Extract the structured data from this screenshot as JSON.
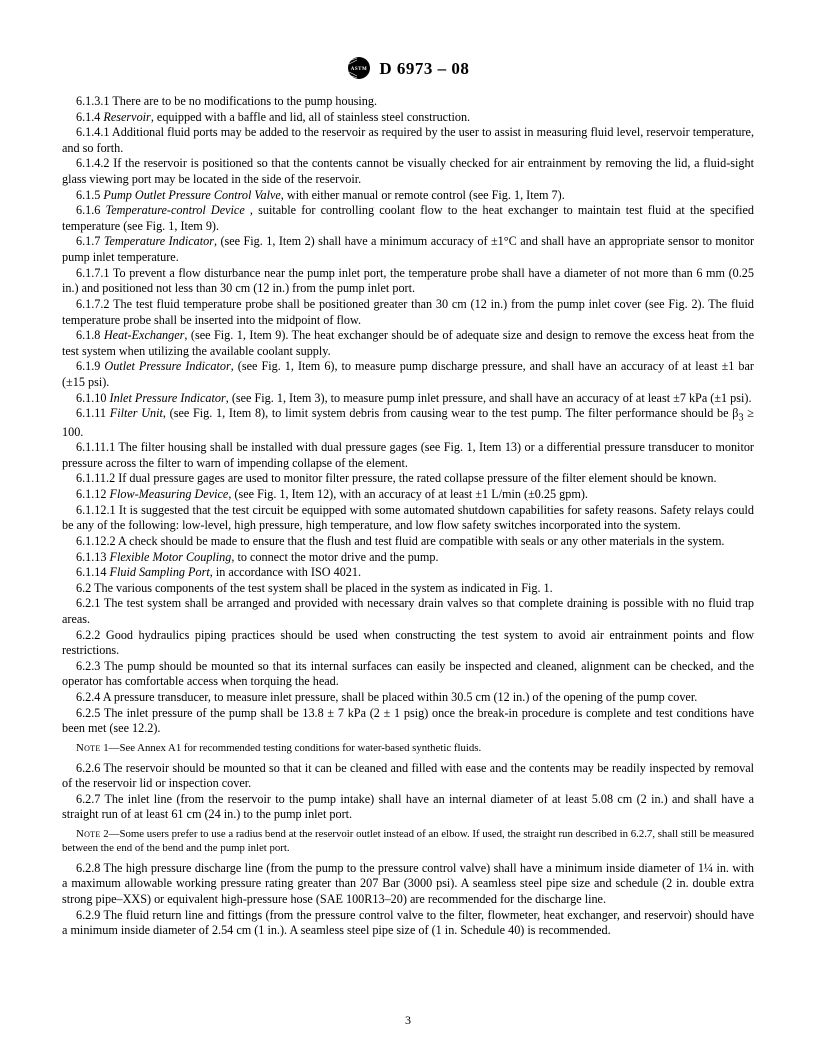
{
  "header": {
    "designation": "D 6973 – 08"
  },
  "paragraphs": [
    {
      "cls": "",
      "html": "6.1.3.1 There are to be no modifications to the pump housing."
    },
    {
      "cls": "",
      "html": "6.1.4 <span class=\"it\">Reservoir</span>, equipped with a baffle and lid, all of stainless steel construction."
    },
    {
      "cls": "",
      "html": "6.1.4.1 Additional fluid ports may be added to the reservoir as required by the user to assist in measuring fluid level, reservoir temperature, and so forth."
    },
    {
      "cls": "",
      "html": "6.1.4.2 If the reservoir is positioned so that the contents cannot be visually checked for air entrainment by removing the lid, a fluid-sight glass viewing port may be located in the side of the reservoir."
    },
    {
      "cls": "",
      "html": "6.1.5 <span class=\"it\">Pump Outlet Pressure Control Valve</span>, with either manual or remote control (see Fig. 1, Item 7)."
    },
    {
      "cls": "",
      "html": "6.1.6 <span class=\"it\">Temperature-control Device</span> , suitable for controlling coolant flow to the heat exchanger to maintain test fluid at the specified temperature (see Fig. 1, Item 9)."
    },
    {
      "cls": "",
      "html": "6.1.7 <span class=\"it\">Temperature Indicator</span>, (see Fig. 1, Item 2) shall have a minimum accuracy of ±1°C and shall have an appropriate sensor to monitor pump inlet temperature."
    },
    {
      "cls": "",
      "html": "6.1.7.1 To prevent a flow disturbance near the pump inlet port, the temperature probe shall have a diameter of not more than 6 mm (0.25 in.) and positioned not less than 30 cm (12 in.) from the pump inlet port."
    },
    {
      "cls": "",
      "html": "6.1.7.2 The test fluid temperature probe shall be positioned greater than 30 cm (12 in.) from the pump inlet cover (see Fig. 2). The fluid temperature probe shall be inserted into the midpoint of flow."
    },
    {
      "cls": "",
      "html": "6.1.8 <span class=\"it\">Heat-Exchanger</span>, (see Fig. 1, Item 9). The heat exchanger should be of adequate size and design to remove the excess heat from the test system when utilizing the available coolant supply."
    },
    {
      "cls": "",
      "html": "6.1.9 <span class=\"it\">Outlet Pressure Indicator</span>, (see Fig. 1, Item 6), to measure pump discharge pressure, and shall have an accuracy of at least ±1 bar (±15 psi)."
    },
    {
      "cls": "",
      "html": "6.1.10 <span class=\"it\">Inlet Pressure Indicator</span>, (see Fig. 1, Item 3), to measure pump inlet pressure, and shall have an accuracy of at least ±7 kPa (±1 psi)."
    },
    {
      "cls": "",
      "html": "6.1.11 <span class=\"it\">Filter Unit</span>, (see Fig. 1, Item 8), to limit system debris from causing wear to the test pump. The filter performance should be β<sub>3</sub> ≥ 100."
    },
    {
      "cls": "",
      "html": "6.1.11.1 The filter housing shall be installed with dual pressure gages (see Fig. 1, Item 13) or a differential pressure transducer to monitor pressure across the filter to warn of impending collapse of the element."
    },
    {
      "cls": "",
      "html": "6.1.11.2 If dual pressure gages are used to monitor filter pressure, the rated collapse pressure of the filter element should be known."
    },
    {
      "cls": "",
      "html": "6.1.12 <span class=\"it\">Flow-Measuring Device</span>, (see Fig. 1, Item 12), with an accuracy of at least ±1 L/min (±0.25 gpm)."
    },
    {
      "cls": "",
      "html": "6.1.12.1 It is suggested that the test circuit be equipped with some automated shutdown capabilities for safety reasons. Safety relays could be any of the following: low-level, high pressure, high temperature, and low flow safety switches incorporated into the system."
    },
    {
      "cls": "",
      "html": "6.1.12.2 A check should be made to ensure that the flush and test fluid are compatible with seals or any other materials in the system."
    },
    {
      "cls": "",
      "html": "6.1.13 <span class=\"it\">Flexible Motor Coupling</span>, to connect the motor drive and the pump."
    },
    {
      "cls": "",
      "html": "6.1.14 <span class=\"it\">Fluid Sampling Port</span>, in accordance with ISO 4021."
    },
    {
      "cls": "",
      "html": "6.2 The various components of the test system shall be placed in the system as indicated in Fig. 1."
    },
    {
      "cls": "",
      "html": "6.2.1 The test system shall be arranged and provided with necessary drain valves so that complete draining is possible with no fluid trap areas."
    },
    {
      "cls": "",
      "html": "6.2.2 Good hydraulics piping practices should be used when constructing the test system to avoid air entrainment points and flow restrictions."
    },
    {
      "cls": "",
      "html": "6.2.3 The pump should be mounted so that its internal surfaces can easily be inspected and cleaned, alignment can be checked, and the operator has comfortable access when torquing the head."
    },
    {
      "cls": "",
      "html": "6.2.4 A pressure transducer, to measure inlet pressure, shall be placed within 30.5 cm (12 in.) of the opening of the pump cover."
    },
    {
      "cls": "",
      "html": "6.2.5 The inlet pressure of the pump shall be 13.8 ± 7 kPa (2 ± 1 psig) once the break-in procedure is complete and test conditions have been met (see 12.2)."
    },
    {
      "cls": "note",
      "html": "<span class=\"sc\">Note</span> 1—See Annex A1 for recommended testing conditions for water-based synthetic fluids."
    },
    {
      "cls": "",
      "html": "6.2.6 The reservoir should be mounted so that it can be cleaned and filled with ease and the contents may be readily inspected by removal of the reservoir lid or inspection cover."
    },
    {
      "cls": "",
      "html": "6.2.7 The inlet line (from the reservoir to the pump intake) shall have an internal diameter of at least 5.08 cm (2 in.) and shall have a straight run of at least 61 cm (24 in.) to the pump inlet port."
    },
    {
      "cls": "note",
      "html": "<span class=\"sc\">Note</span> 2—Some users prefer to use a radius bend at the reservoir outlet instead of an elbow. If used, the straight run described in 6.2.7, shall still be measured between the end of the bend and the pump inlet port."
    },
    {
      "cls": "",
      "html": "6.2.8 The high pressure discharge line (from the pump to the pressure control valve) shall have a minimum inside diameter of 1¼ in. with a maximum allowable working pressure rating greater than 207 Bar (3000 psi). A seamless steel pipe size and schedule (2 in. double extra strong pipe–XXS) or equivalent high-pressure hose (SAE 100R13–20) are recommended for the discharge line."
    },
    {
      "cls": "",
      "html": "6.2.9 The fluid return line and fittings (from the pressure control valve to the filter, flowmeter, heat exchanger, and reservoir) should have a minimum inside diameter of 2.54 cm (1 in.). A seamless steel pipe size of (1 in. Schedule 40) is recommended."
    }
  ],
  "pagenum": "3"
}
